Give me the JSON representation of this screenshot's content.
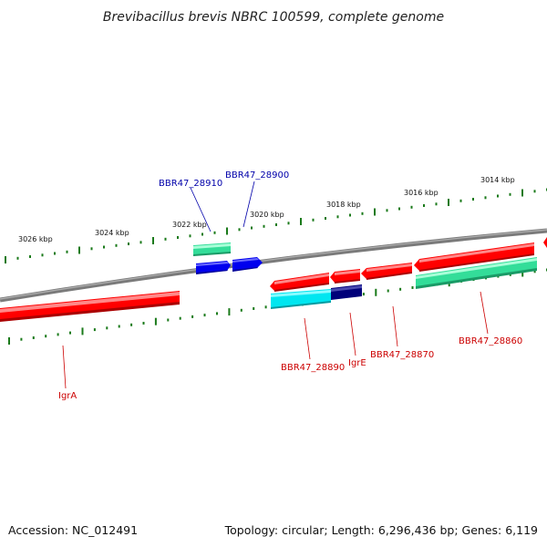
{
  "title": "Brevibacillus brevis NBRC 100599, complete genome",
  "kbp_labels": [
    "3026 kbp",
    "3024 kbp",
    "3022 kbp",
    "3020 kbp",
    "3018 kbp",
    "3016 kbp",
    "3014 kbp"
  ],
  "gene_labels": {
    "BBR47_28910": "BBR47_28910",
    "BBR47_28900": "BBR47_28900",
    "igrA": "IgrA",
    "BBR47_28890": "BBR47_28890",
    "igrE": "IgrE",
    "BBR47_28870": "BBR47_28870",
    "BBR47_28860": "BBR47_28860"
  },
  "colors": {
    "forward_label": "#0000aa",
    "reverse_label": "#cc0000",
    "red_gene": "#ff0000",
    "green_gene": "#33dd99",
    "blue_gene": "#0000ee",
    "cyan_gene": "#00e6f0",
    "navy_gene": "#00007a",
    "tick": "#1a7a1a",
    "backbone": "#808080"
  },
  "footer": {
    "accession": "Accession: NC_012491",
    "topology": "Topology: circular; Length: 6,296,436 bp; Genes: 6,119"
  }
}
